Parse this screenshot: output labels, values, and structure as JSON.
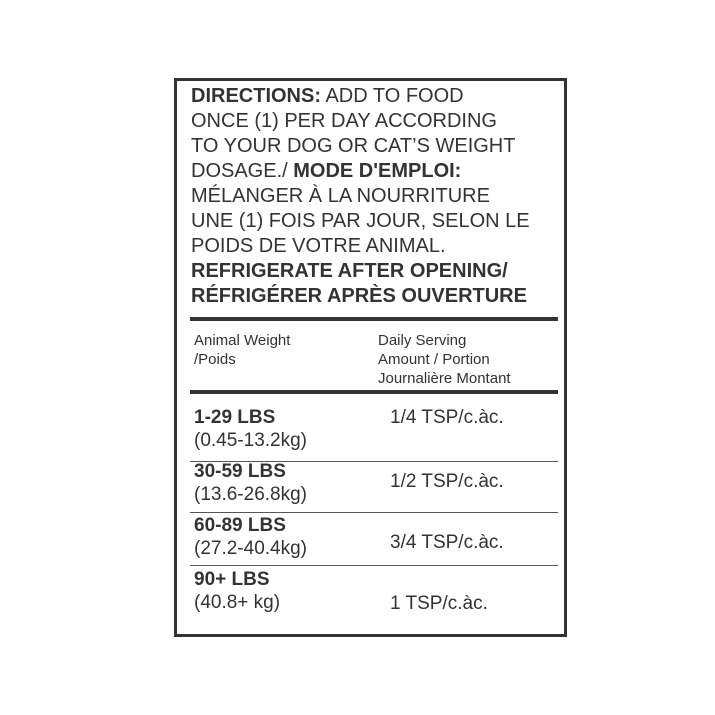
{
  "directions": {
    "lines": [
      {
        "bold": "DIRECTIONS:",
        "text": " ADD TO FOOD"
      },
      {
        "bold": "",
        "text": "ONCE (1) PER DAY ACCORDING"
      },
      {
        "bold": "",
        "text": "TO YOUR DOG OR CAT’S WEIGHT"
      },
      {
        "bold": "",
        "text": "DOSAGE./ ",
        "bold_after": "MODE D'EMPLOI:"
      },
      {
        "bold": "",
        "text": "MÉLANGER À LA NOURRITURE"
      },
      {
        "bold": "",
        "text": "UNE (1) FOIS PAR JOUR, SELON LE"
      },
      {
        "bold": "",
        "text": "POIDS DE VOTRE ANIMAL."
      },
      {
        "bold": "REFRIGERATE AFTER OPENING/",
        "text": ""
      },
      {
        "bold": "RÉFRIGÉRER APRÈS OUVERTURE",
        "text": ""
      }
    ]
  },
  "table": {
    "headers": {
      "weight": [
        "Animal Weight",
        "/Poids"
      ],
      "serving": [
        "Daily Serving",
        "Amount / Portion",
        "Journalière Montant"
      ]
    },
    "rows": [
      {
        "lbs": "1-29 LBS",
        "kg": "(0.45-13.2kg)",
        "serving": "1/4 TSP/c.àc."
      },
      {
        "lbs": "30-59 LBS",
        "kg": "(13.6-26.8kg)",
        "serving": "1/2 TSP/c.àc."
      },
      {
        "lbs": "60-89 LBS",
        "kg": "(27.2-40.4kg)",
        "serving": "3/4 TSP/c.àc."
      },
      {
        "lbs": "90+ LBS",
        "kg": "(40.8+ kg)",
        "serving": "1 TSP/c.àc."
      }
    ]
  },
  "colors": {
    "text": "#333333",
    "border": "#333333"
  }
}
